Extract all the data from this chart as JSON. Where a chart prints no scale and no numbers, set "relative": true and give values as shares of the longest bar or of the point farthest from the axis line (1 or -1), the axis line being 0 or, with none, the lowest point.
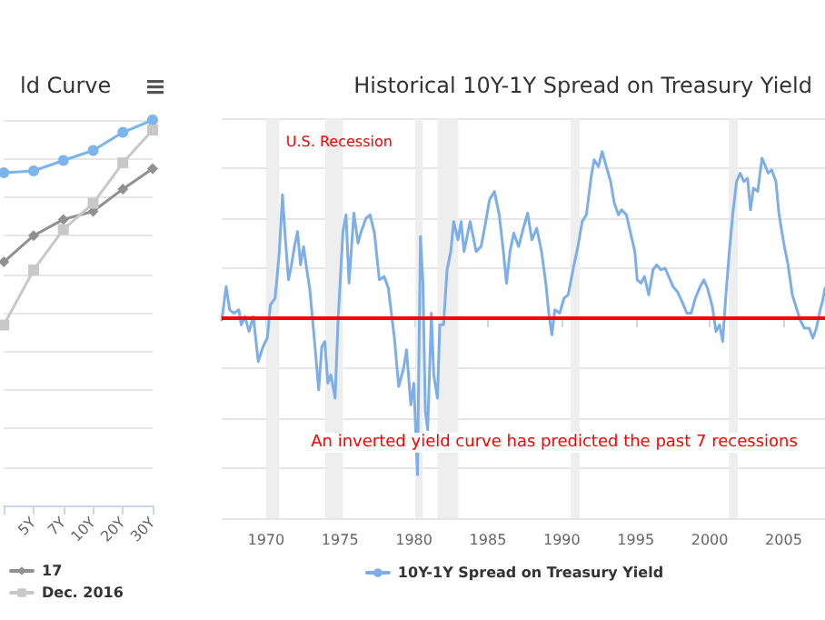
{
  "chart_data": [
    {
      "type": "line",
      "title": "ld Curve",
      "categories": [
        null,
        "5Y",
        "7Y",
        "10Y",
        "20Y",
        "30Y"
      ],
      "relative": true,
      "grid": "y",
      "legend": "bottom",
      "tick_labels": "x",
      "series": [
        {
          "color": "#7cb5ec",
          "marker": "circle",
          "values": [
            0.863,
            0.868,
            0.895,
            0.921,
            0.968,
            1
          ]
        },
        {
          "name": "17",
          "color": "#909090",
          "marker": "diamond",
          "values": [
            0.632,
            0.7,
            0.742,
            0.763,
            0.821,
            0.874
          ]
        },
        {
          "name": "Dec. 2016",
          "color": "#c8c8c8",
          "marker": "square",
          "values": [
            0.468,
            0.611,
            0.716,
            0.784,
            0.889,
            0.974
          ]
        }
      ]
    },
    {
      "type": "line",
      "title": "Historical 10Y-1Y Spread on Treasury Yield",
      "relative": true,
      "grid": "y",
      "legend": "bottom",
      "tick_labels": "x",
      "xlim": [
        1967,
        2007.8
      ],
      "xticks": [
        1970,
        1975,
        1980,
        1985,
        1990,
        1995,
        2000,
        2005
      ],
      "ref_lines": [
        {
          "axis": "y",
          "value": 0,
          "color": "#ff0000"
        }
      ],
      "bands": [
        {
          "axis": "x",
          "from": 1970.0,
          "to": 1970.9,
          "label": "U.S. Recession",
          "color": "#eeeeee"
        },
        {
          "axis": "x",
          "from": 1974.0,
          "to": 1975.2,
          "color": "#eeeeee"
        },
        {
          "axis": "x",
          "from": 1980.1,
          "to": 1980.6,
          "color": "#eeeeee"
        },
        {
          "axis": "x",
          "from": 1981.6,
          "to": 1983.0,
          "color": "#eeeeee"
        },
        {
          "axis": "x",
          "from": 1990.6,
          "to": 1991.2,
          "color": "#eeeeee"
        },
        {
          "axis": "x",
          "from": 2001.3,
          "to": 2001.9,
          "color": "#eeeeee"
        }
      ],
      "annotations": [
        "An inverted yield curve has predicted the past 7 recessions"
      ],
      "series": [
        {
          "name": "10Y-1Y Spread on Treasury Yield",
          "color": "#7eaee8",
          "marker": "none",
          "x": [
            1967.01,
            1967.3,
            1967.54,
            1967.83,
            1968.16,
            1968.32,
            1968.57,
            1968.85,
            1969.14,
            1969.47,
            1969.8,
            1970.08,
            1970.29,
            1970.61,
            1970.9,
            1971.11,
            1971.31,
            1971.52,
            1971.72,
            1971.92,
            1972.13,
            1972.33,
            1972.54,
            1972.74,
            1972.95,
            1973.24,
            1973.56,
            1973.77,
            1973.97,
            1974.18,
            1974.38,
            1974.67,
            1974.87,
            1975.2,
            1975.41,
            1975.61,
            1975.94,
            1976.22,
            1976.43,
            1976.76,
            1977.04,
            1977.33,
            1977.66,
            1977.99,
            1978.27,
            1978.68,
            1978.97,
            1979.3,
            1979.5,
            1979.79,
            1979.99,
            1980.24,
            1980.44,
            1980.61,
            1980.77,
            1980.93,
            1981.18,
            1981.34,
            1981.59,
            1981.75,
            1982.0,
            1982.24,
            1982.49,
            1982.69,
            1982.98,
            1983.19,
            1983.39,
            1983.8,
            1984.21,
            1984.54,
            1984.82,
            1985.11,
            1985.44,
            1985.77,
            1986.05,
            1986.26,
            1986.5,
            1986.75,
            1987.08,
            1987.4,
            1987.69,
            1987.98,
            1988.3,
            1988.63,
            1988.92,
            1989.12,
            1989.33,
            1989.53,
            1989.86,
            1990.15,
            1990.43,
            1990.76,
            1991.09,
            1991.38,
            1991.66,
            1991.99,
            1992.19,
            1992.48,
            1992.73,
            1993.01,
            1993.3,
            1993.55,
            1993.83,
            1994.04,
            1994.37,
            1994.65,
            1994.94,
            1995.1,
            1995.35,
            1995.59,
            1995.88,
            1996.17,
            1996.41,
            1996.7,
            1996.99,
            1997.23,
            1997.52,
            1997.81,
            1998.13,
            1998.46,
            1998.75,
            1999.03,
            1999.36,
            1999.61,
            1999.85,
            2000.18,
            2000.43,
            2000.67,
            2000.88,
            2001.08,
            2001.33,
            2001.57,
            2001.82,
            2002.06,
            2002.31,
            2002.56,
            2002.76,
            2002.96,
            2003.25,
            2003.54,
            2003.78,
            2003.95,
            2004.19,
            2004.48,
            2004.68,
            2005.01,
            2005.3,
            2005.59,
            2005.83,
            2006.12,
            2006.4,
            2006.73,
            2006.98,
            2007.22,
            2007.47,
            2007.63,
            2007.8
          ],
          "values": [
            -0.01,
            0.19,
            0.05,
            0.03,
            0.05,
            -0.04,
            0.01,
            -0.08,
            0.01,
            -0.26,
            -0.17,
            -0.12,
            0.08,
            0.12,
            0.4,
            0.74,
            0.47,
            0.23,
            0.32,
            0.43,
            0.52,
            0.32,
            0.43,
            0.3,
            0.18,
            -0.1,
            -0.43,
            -0.17,
            -0.14,
            -0.39,
            -0.34,
            -0.48,
            -0.01,
            0.52,
            0.62,
            0.21,
            0.63,
            0.45,
            0.52,
            0.6,
            0.62,
            0.51,
            0.23,
            0.25,
            0.18,
            -0.12,
            -0.41,
            -0.3,
            -0.19,
            -0.52,
            -0.39,
            -0.94,
            0.49,
            0.21,
            -0.56,
            -0.67,
            0.03,
            -0.34,
            -0.48,
            -0.04,
            -0.04,
            0.29,
            0.4,
            0.58,
            0.47,
            0.58,
            0.4,
            0.58,
            0.4,
            0.43,
            0.56,
            0.71,
            0.76,
            0.62,
            0.4,
            0.21,
            0.4,
            0.51,
            0.43,
            0.54,
            0.63,
            0.47,
            0.54,
            0.4,
            0.21,
            0.03,
            -0.1,
            0.05,
            0.03,
            0.12,
            0.14,
            0.29,
            0.43,
            0.58,
            0.62,
            0.85,
            0.95,
            0.91,
            1.0,
            0.91,
            0.82,
            0.69,
            0.62,
            0.65,
            0.62,
            0.51,
            0.4,
            0.23,
            0.21,
            0.25,
            0.14,
            0.29,
            0.32,
            0.29,
            0.3,
            0.25,
            0.19,
            0.16,
            0.1,
            0.03,
            0.03,
            0.12,
            0.19,
            0.23,
            0.18,
            0.07,
            -0.08,
            -0.04,
            -0.14,
            0.12,
            0.4,
            0.63,
            0.82,
            0.87,
            0.82,
            0.84,
            0.65,
            0.78,
            0.76,
            0.96,
            0.91,
            0.87,
            0.89,
            0.82,
            0.63,
            0.45,
            0.32,
            0.14,
            0.07,
            -0.01,
            -0.06,
            -0.06,
            -0.12,
            -0.06,
            0.05,
            0.1,
            0.18
          ]
        }
      ]
    }
  ]
}
